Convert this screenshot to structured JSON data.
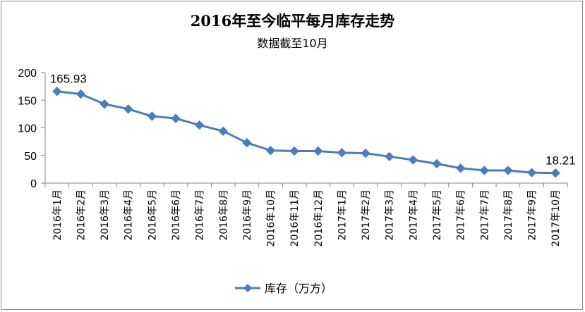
{
  "chart_data": {
    "type": "line",
    "title": "2016年至今临平每月库存走势",
    "subtitle": "数据截至10月",
    "categories": [
      "2016年1月",
      "2016年2月",
      "2016年3月",
      "2016年4月",
      "2016年5月",
      "2016年6月",
      "2016年7月",
      "2016年8月",
      "2016年9月",
      "2016年10月",
      "2016年11月",
      "2016年12月",
      "2017年1月",
      "2017年2月",
      "2017年3月",
      "2017年4月",
      "2017年5月",
      "2017年6月",
      "2017年7月",
      "2017年8月",
      "2017年9月",
      "2017年10月"
    ],
    "series": [
      {
        "name": "库存（万方）",
        "values": [
          165.93,
          161,
          143,
          134,
          121,
          117,
          105,
          94,
          73,
          59,
          58,
          58,
          55,
          54,
          48,
          42,
          35,
          27,
          23,
          23,
          19,
          18.21
        ]
      }
    ],
    "data_labels": [
      {
        "index": 0,
        "text": "165.93"
      },
      {
        "index": 21,
        "text": "18.21"
      }
    ],
    "yticks": [
      "0",
      "50",
      "100",
      "150",
      "200"
    ],
    "ylim": [
      0,
      200
    ],
    "grid": false,
    "legend_position": "bottom",
    "colors": {
      "series": "#4a7ebb",
      "axis": "#868686"
    }
  }
}
